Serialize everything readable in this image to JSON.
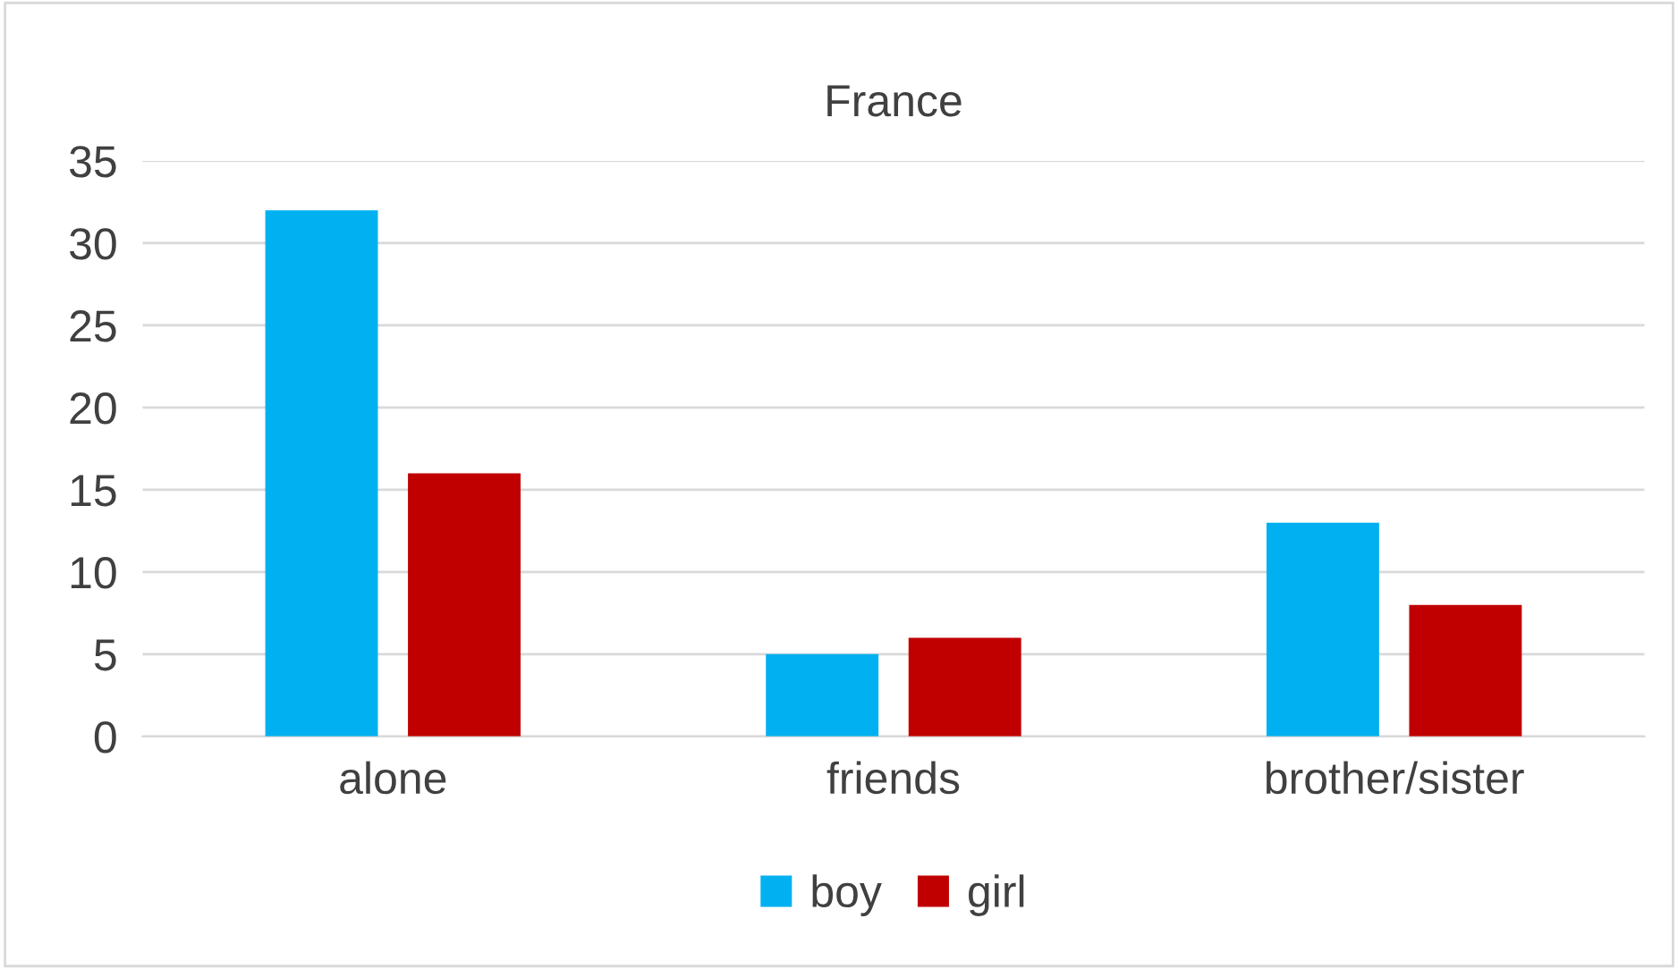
{
  "chart_data": {
    "type": "bar",
    "title": "France",
    "categories": [
      "alone",
      "friends",
      "brother/sister"
    ],
    "series": [
      {
        "name": "boy",
        "color": "#00b0f0",
        "values": [
          32,
          5,
          13
        ]
      },
      {
        "name": "girl",
        "color": "#c00000",
        "values": [
          16,
          6,
          8
        ]
      }
    ],
    "ylim": [
      0,
      35
    ],
    "yticks": [
      0,
      5,
      10,
      15,
      20,
      25,
      30,
      35
    ],
    "grid": "y",
    "legend": "bottom"
  }
}
